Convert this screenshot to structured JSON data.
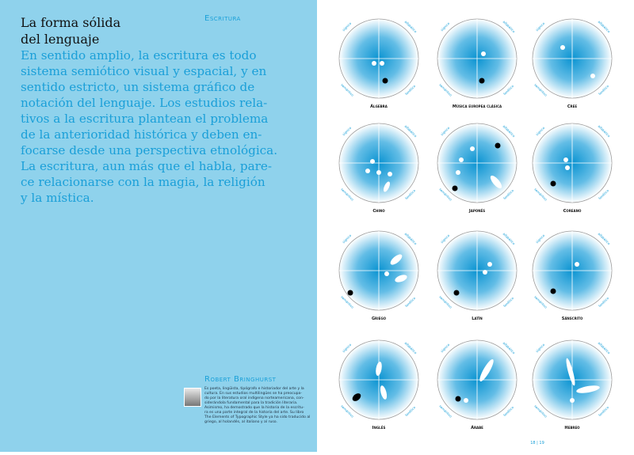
{
  "left_page": {
    "section": "Escritura",
    "title": [
      "La forma sólida",
      "del lenguaje"
    ],
    "body": [
      "En sentido amplio, la escritura es todo",
      "sistema semiótico visual y espacial, y en",
      "sentido estricto, un sistema gráfico de",
      "notación del lenguaje. Los estudios rela-",
      "tivos a la escritura plantean el problema",
      "de la anterioridad histórica y deben en-",
      "focarse desde una perspectiva etnológica.",
      "La escritura, aun más que el habla, pare-",
      "ce relacionarse con la magia, la religión",
      "y la mística."
    ],
    "author": {
      "name": "Robert Bringhurst",
      "bio": [
        "Es poeta, lingüista, tipógrafo e historiador del arte y la",
        "cultura. En sus estudios multilingües se ha preocupa-",
        "do por la literatura oral indígena norteamericana, con-",
        "siderándola fundamental para la tradición literaria.",
        "Asimismo, ha demostrado que la historia de la escritu-",
        "ra es una parte integral de la historia del arte. Su libro",
        "The Elements of Typographic Style ya ha sido traducido al",
        "griego, al holandés, al italiano y al ruso."
      ]
    }
  },
  "right_page": {
    "quadrant_labels": [
      "sígnico",
      "alfabético",
      "semántico",
      "fonético"
    ],
    "diagrams": [
      "Álgebra",
      "Música europea clásica",
      "Cree",
      "Chino",
      "Japonés",
      "Coreano",
      "Griego",
      "Latín",
      "Sánscrito",
      "Inglés",
      "Árabe",
      "Hebreo"
    ],
    "page_number": "18 | 19"
  }
}
